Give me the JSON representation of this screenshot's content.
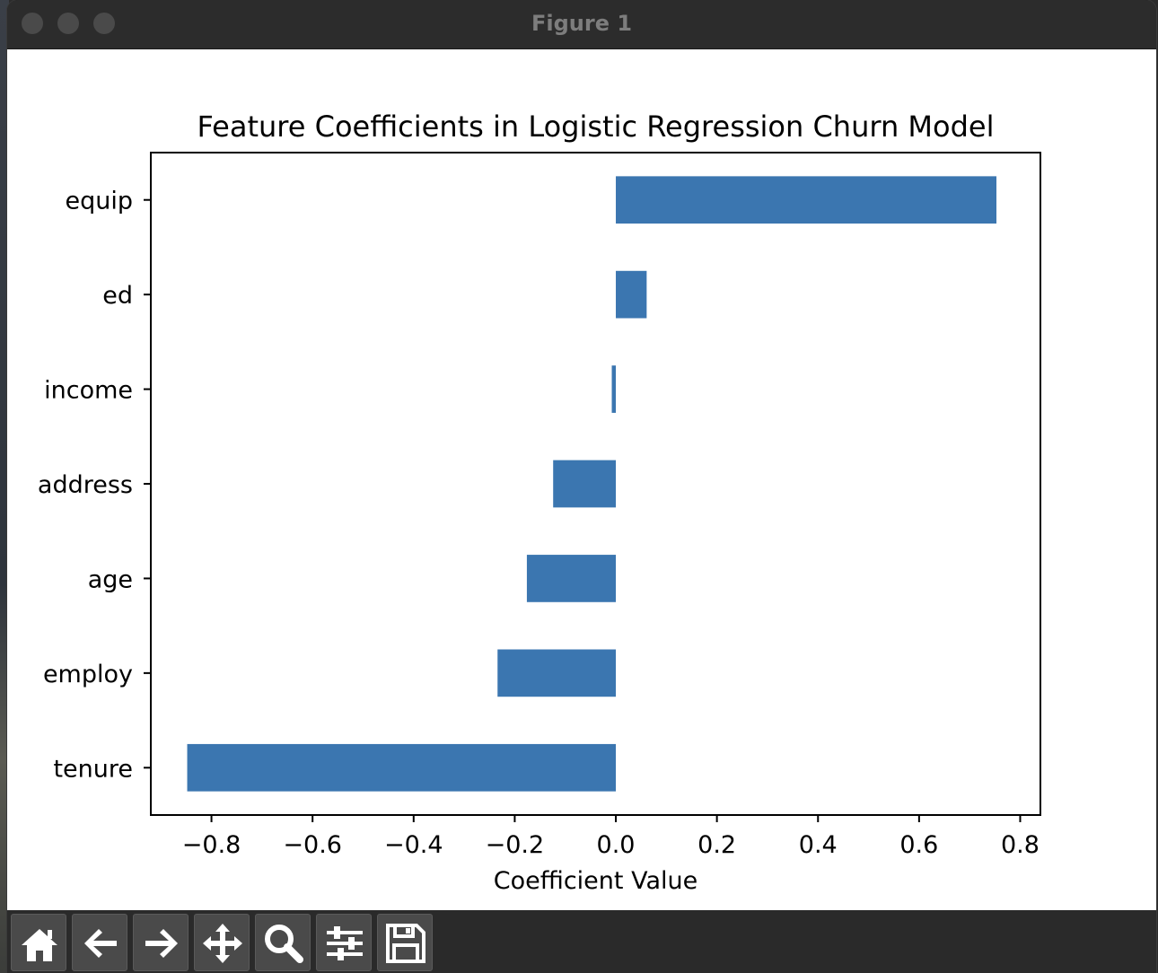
{
  "window": {
    "title": "Figure 1"
  },
  "toolbar": {
    "tools": [
      {
        "name": "home-icon"
      },
      {
        "name": "back-arrow-icon"
      },
      {
        "name": "forward-arrow-icon"
      },
      {
        "name": "pan-move-icon"
      },
      {
        "name": "zoom-magnifier-icon"
      },
      {
        "name": "configure-subplots-icon"
      },
      {
        "name": "save-floppy-icon"
      }
    ]
  },
  "colors": {
    "bar": "#3b76b0",
    "axis": "#000000",
    "text": "#000000"
  },
  "chart_data": {
    "type": "bar",
    "orientation": "horizontal",
    "title": "Feature Coefficients in Logistic Regression Churn Model",
    "xlabel": "Coefficient Value",
    "ylabel": "",
    "categories": [
      "equip",
      "ed",
      "income",
      "address",
      "age",
      "employ",
      "tenure"
    ],
    "values": [
      0.753,
      0.061,
      -0.008,
      -0.124,
      -0.176,
      -0.234,
      -0.848
    ],
    "xlim": [
      -0.92,
      0.84
    ],
    "xticks": [
      -0.8,
      -0.6,
      -0.4,
      -0.2,
      0.0,
      0.2,
      0.4,
      0.6,
      0.8
    ],
    "xtick_labels": [
      "−0.8",
      "−0.6",
      "−0.4",
      "−0.2",
      "0.0",
      "0.2",
      "0.4",
      "0.6",
      "0.8"
    ],
    "grid": false,
    "legend": "none"
  }
}
